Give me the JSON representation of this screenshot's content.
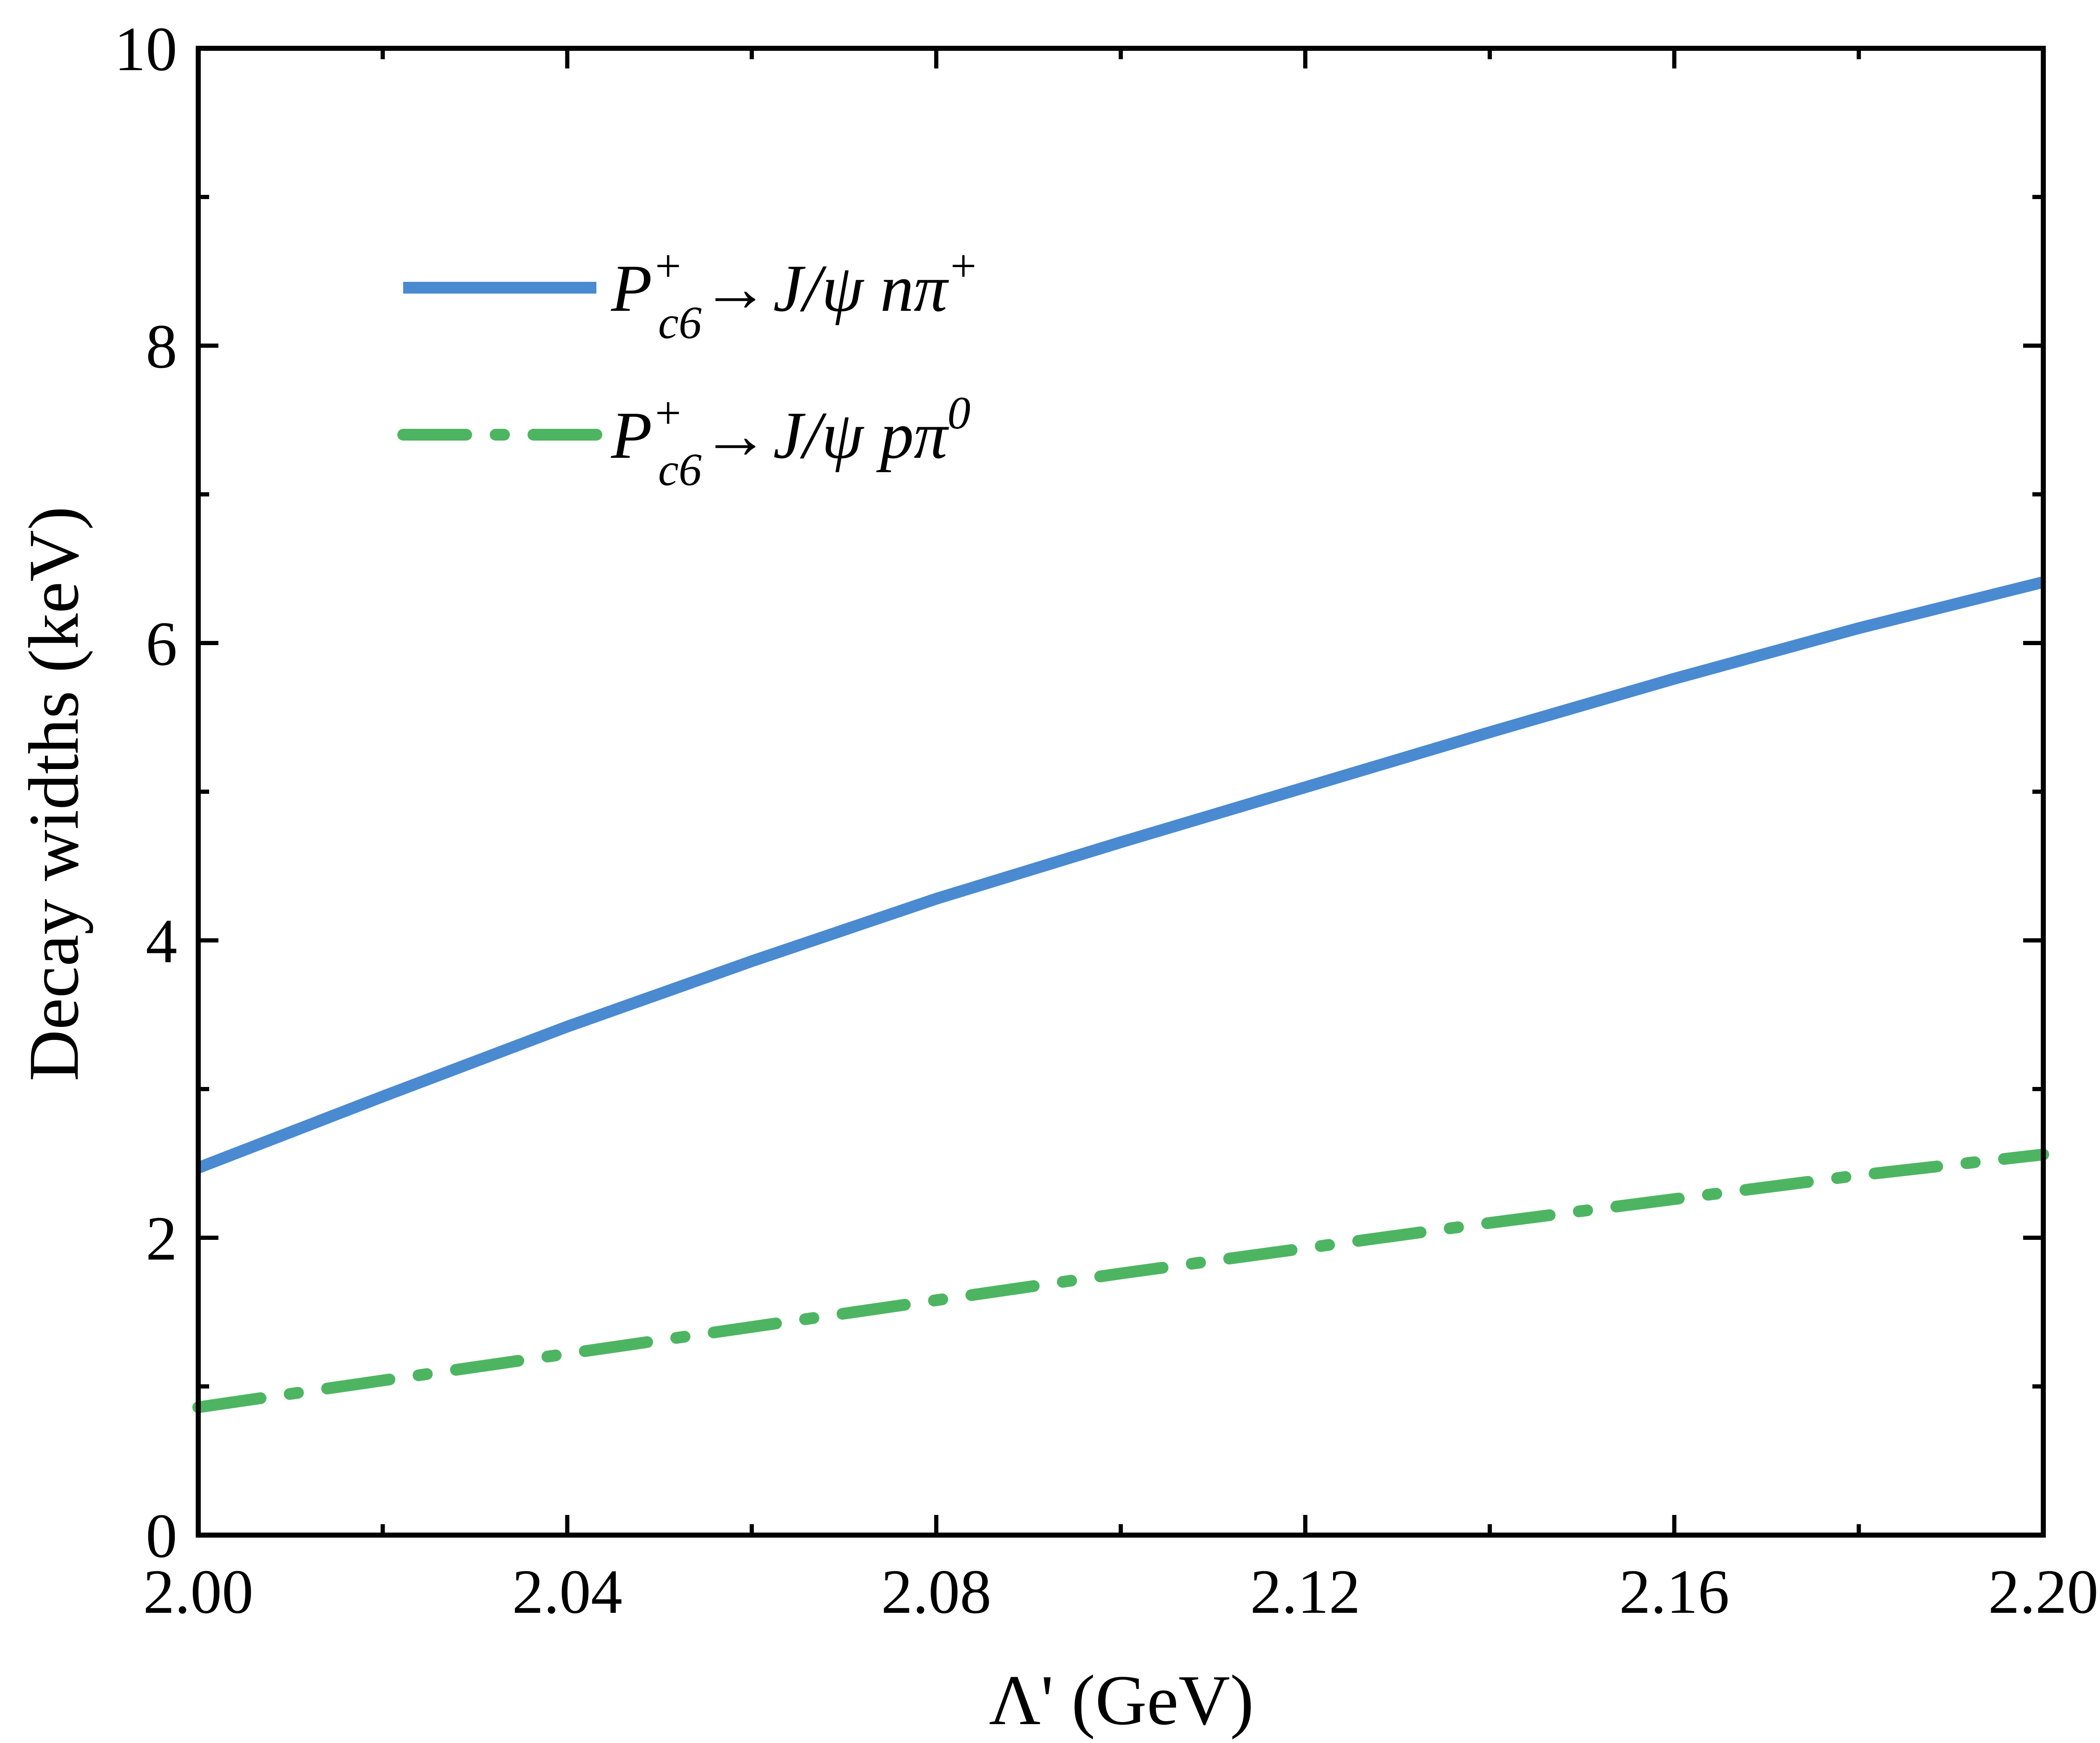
{
  "chart_data": {
    "type": "line",
    "title": "",
    "xlabel": "Λ' (GeV)",
    "ylabel": "Decay widths (keV)",
    "xlim": [
      2.0,
      2.2
    ],
    "ylim": [
      0,
      10
    ],
    "x_ticks": [
      2.0,
      2.04,
      2.08,
      2.12,
      2.16,
      2.2
    ],
    "x_tick_labels": [
      "2.00",
      "2.04",
      "2.08",
      "2.12",
      "2.16",
      "2.20"
    ],
    "x_minor_ticks": [
      2.02,
      2.06,
      2.1,
      2.14,
      2.18
    ],
    "y_ticks": [
      0,
      2,
      4,
      6,
      8,
      10
    ],
    "y_tick_labels": [
      "0",
      "2",
      "4",
      "6",
      "8",
      "10"
    ],
    "y_minor_ticks": [
      1,
      3,
      5,
      7,
      9
    ],
    "grid": false,
    "legend_position": "upper-left",
    "series": [
      {
        "name": "P_c6^+ → J/ψ n π^+",
        "legend": {
          "P": "P",
          "sup": "+",
          "sub": "c6",
          "arrow": "→",
          "rest": "J/ψ nπ",
          "final_sup": "+"
        },
        "color": "#4A8AD0",
        "style": "solid",
        "x": [
          2.0,
          2.02,
          2.04,
          2.06,
          2.08,
          2.1,
          2.12,
          2.14,
          2.16,
          2.18,
          2.2
        ],
        "y": [
          2.47,
          2.95,
          3.42,
          3.86,
          4.28,
          4.66,
          5.03,
          5.4,
          5.76,
          6.1,
          6.41
        ]
      },
      {
        "name": "P_c6^+ → J/ψ p π^0",
        "legend": {
          "P": "P",
          "sup": "+",
          "sub": "c6",
          "arrow": "→",
          "rest": "J/ψ pπ",
          "final_sup": "0"
        },
        "color": "#4DB561",
        "style": "dashdot",
        "x": [
          2.0,
          2.02,
          2.04,
          2.06,
          2.08,
          2.1,
          2.12,
          2.14,
          2.16,
          2.18,
          2.2
        ],
        "y": [
          0.86,
          1.04,
          1.22,
          1.4,
          1.58,
          1.76,
          1.93,
          2.1,
          2.26,
          2.42,
          2.56
        ]
      }
    ]
  }
}
